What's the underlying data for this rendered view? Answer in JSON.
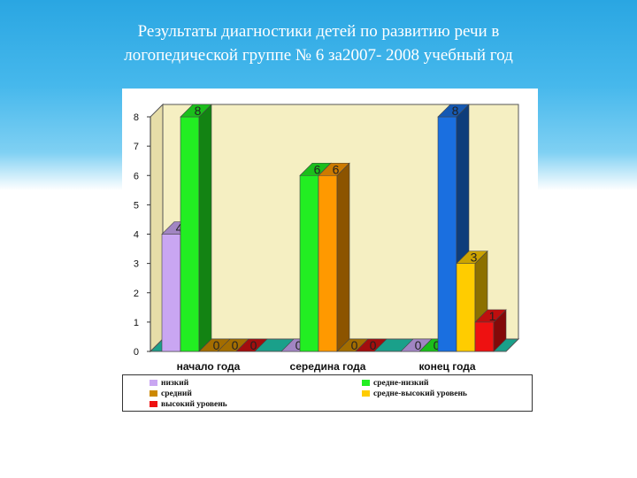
{
  "slide": {
    "title_line1": "Результаты диагностики детей по развитию речи в",
    "title_line2": "логопедической группе № 6 за2007- 2008 учебный год"
  },
  "chart_data": {
    "type": "bar",
    "categories": [
      "начало года",
      "середина года",
      "конец года"
    ],
    "series": [
      {
        "name": "низкий",
        "values": [
          4,
          0,
          0
        ],
        "color": "#c9a6f2"
      },
      {
        "name": "средне-низкий",
        "values": [
          8,
          6,
          0
        ],
        "color": "#22ee22"
      },
      {
        "name": "средний",
        "values": [
          0,
          6,
          8
        ],
        "color": "#ff9900"
      },
      {
        "name": "средне-высокий уровень",
        "values": [
          0,
          0,
          3
        ],
        "color": "#ffcc00"
      },
      {
        "name": "высокий уровень",
        "values": [
          0,
          0,
          1
        ],
        "color": "#ee1111"
      }
    ],
    "series_order_by_category": [
      [
        0,
        1,
        2,
        3,
        4
      ],
      [
        0,
        1,
        2,
        3,
        4
      ],
      [
        0,
        1,
        2,
        3,
        4
      ]
    ],
    "bar_colors_by_category": [
      [
        "#c9a6f2",
        "#22ee22",
        "#cc8800",
        "#cc8800",
        "#cc1111"
      ],
      [
        "#c9a6f2",
        "#22ee22",
        "#ff9900",
        "#cc8800",
        "#cc1111"
      ],
      [
        "#c9a6f2",
        "#22ee22",
        "#1a6fe0",
        "#ffcc00",
        "#ee1111"
      ]
    ],
    "yticks": [
      0,
      1,
      2,
      3,
      4,
      5,
      6,
      7,
      8
    ],
    "ylim": [
      0,
      8
    ],
    "grid": false,
    "legend_position": "bottom"
  }
}
